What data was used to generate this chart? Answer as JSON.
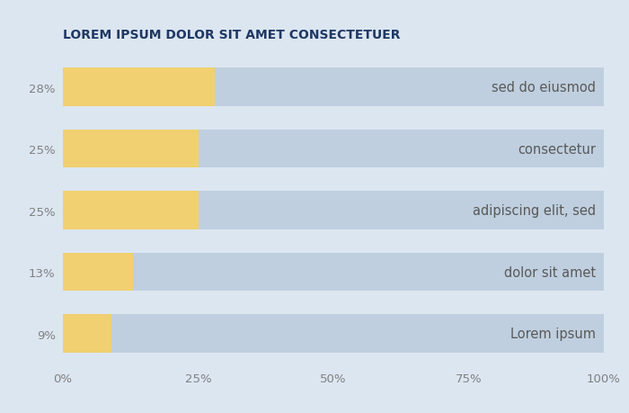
{
  "title": "LOREM IPSUM DOLOR SIT AMET CONSECTETUER",
  "title_color": "#1f3864",
  "background_color": "#dce6f1",
  "plot_bg_color": "#dce6f1",
  "categories": [
    "sed do eiusmod",
    "consectetur",
    "adipiscing elit, sed",
    "dolor sit amet",
    "Lorem ipsum"
  ],
  "yellow_values": [
    28,
    25,
    25,
    13,
    9
  ],
  "gray_values": [
    72,
    75,
    75,
    87,
    91
  ],
  "y_labels": [
    "28%",
    "25%",
    "25%",
    "13%",
    "9%"
  ],
  "yellow_color": "#f0d070",
  "gray_color": "#bfcfdf",
  "bar_label_color": "#595959",
  "axis_label_color": "#808080",
  "xlim": [
    0,
    100
  ],
  "xticks": [
    0,
    25,
    50,
    75,
    100
  ],
  "xtick_labels": [
    "0%",
    "25%",
    "50%",
    "75%",
    "100%"
  ],
  "bar_height": 0.62,
  "label_fontsize": 10.5,
  "title_fontsize": 10,
  "tick_fontsize": 9.5,
  "figsize": [
    7.0,
    4.6
  ],
  "dpi": 100
}
